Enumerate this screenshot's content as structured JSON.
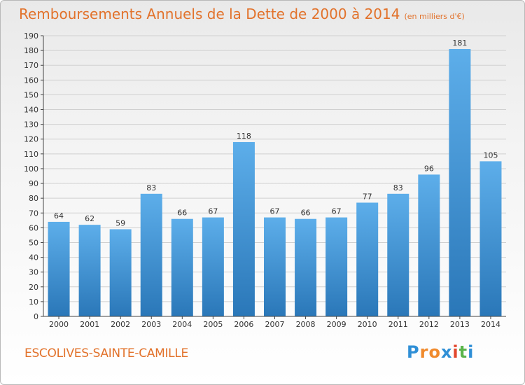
{
  "title": "Remboursements Annuels de la Dette de 2000 à 2014",
  "title_unit": "(en milliers d'€)",
  "town": "ESCOLIVES-SAINTE-CAMILLE",
  "logo": {
    "letters": [
      "P",
      "r",
      "o",
      "x",
      "i",
      "t",
      "i"
    ],
    "colors": [
      "#2f8fd6",
      "#f08a2c",
      "#f08a2c",
      "#2f8fd6",
      "#e2472d",
      "#5ab54b",
      "#2f8fd6"
    ]
  },
  "colors": {
    "accent": "#e2722b",
    "bar_top": "#5daeea",
    "bar_bottom": "#2a77b8",
    "grid": "#d0d0d0",
    "axis_text": "#333333"
  },
  "chart_data": {
    "type": "bar",
    "title": "Remboursements Annuels de la Dette de 2000 à 2014",
    "xlabel": "",
    "ylabel": "",
    "categories": [
      "2000",
      "2001",
      "2002",
      "2003",
      "2004",
      "2005",
      "2006",
      "2007",
      "2008",
      "2009",
      "2010",
      "2011",
      "2012",
      "2013",
      "2014"
    ],
    "values": [
      64,
      62,
      59,
      83,
      66,
      67,
      118,
      67,
      66,
      67,
      77,
      83,
      96,
      181,
      105
    ],
    "ylim": [
      0,
      190
    ],
    "yticks": [
      0,
      10,
      20,
      30,
      40,
      50,
      60,
      70,
      80,
      90,
      100,
      110,
      120,
      130,
      140,
      150,
      160,
      170,
      180,
      190
    ],
    "grid": true,
    "legend": "none"
  }
}
